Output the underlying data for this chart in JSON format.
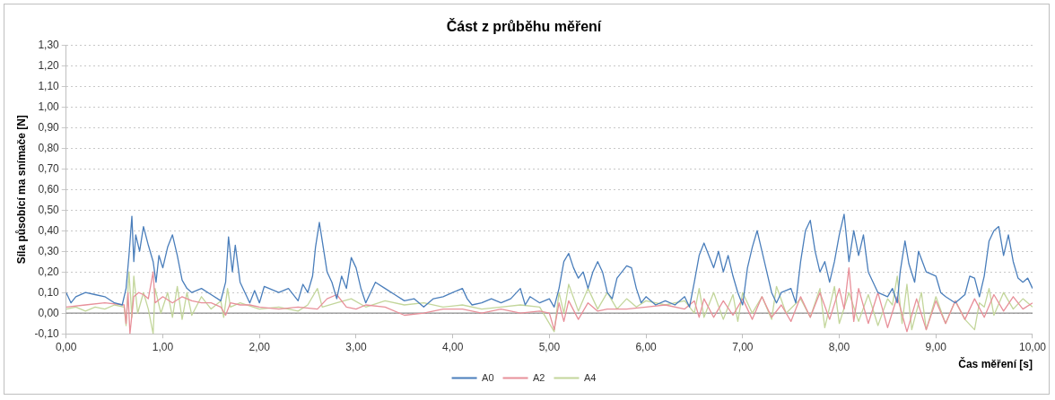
{
  "chart_data": {
    "type": "line",
    "title": "Část z průběhu měření",
    "xlabel": "Čas měření [s]",
    "ylabel": "Síla působící ma snímače [N]",
    "xlim": [
      0,
      10
    ],
    "xticks": [
      {
        "value": 0,
        "label": "0,00"
      },
      {
        "value": 1,
        "label": "1,00"
      },
      {
        "value": 2,
        "label": "2,00"
      },
      {
        "value": 3,
        "label": "3,00"
      },
      {
        "value": 4,
        "label": "4,00"
      },
      {
        "value": 5,
        "label": "5,00"
      },
      {
        "value": 6,
        "label": "6,00"
      },
      {
        "value": 7,
        "label": "7,00"
      },
      {
        "value": 8,
        "label": "8,00"
      },
      {
        "value": 9,
        "label": "9,00"
      },
      {
        "value": 10,
        "label": "10,00"
      }
    ],
    "ylim": [
      -0.1,
      1.3
    ],
    "yticks": [
      {
        "value": -0.1,
        "label": "-0,10"
      },
      {
        "value": 0,
        "label": "0,00"
      },
      {
        "value": 0.1,
        "label": "0,10"
      },
      {
        "value": 0.2,
        "label": "0,20"
      },
      {
        "value": 0.3,
        "label": "0,30"
      },
      {
        "value": 0.4,
        "label": "0,40"
      },
      {
        "value": 0.5,
        "label": "0,50"
      },
      {
        "value": 0.6,
        "label": "0,60"
      },
      {
        "value": 0.7,
        "label": "0,70"
      },
      {
        "value": 0.8,
        "label": "0,80"
      },
      {
        "value": 0.9,
        "label": "0,90"
      },
      {
        "value": 1.0,
        "label": "1,00"
      },
      {
        "value": 1.1,
        "label": "1,10"
      },
      {
        "value": 1.2,
        "label": "1,20"
      },
      {
        "value": 1.3,
        "label": "1,30"
      }
    ],
    "grid": "y",
    "legend": "bottom",
    "marker": "none",
    "line_style": "solid",
    "series": [
      {
        "name": "A0",
        "color": "#4a7ebb",
        "x": [
          0,
          0.05,
          0.1,
          0.2,
          0.3,
          0.4,
          0.5,
          0.58,
          0.62,
          0.65,
          0.68,
          0.7,
          0.72,
          0.76,
          0.8,
          0.85,
          0.9,
          0.93,
          0.96,
          1.0,
          1.05,
          1.1,
          1.15,
          1.2,
          1.25,
          1.3,
          1.4,
          1.5,
          1.6,
          1.65,
          1.68,
          1.72,
          1.75,
          1.8,
          1.85,
          1.9,
          1.95,
          2.0,
          2.05,
          2.1,
          2.2,
          2.3,
          2.4,
          2.45,
          2.5,
          2.55,
          2.58,
          2.62,
          2.66,
          2.7,
          2.75,
          2.8,
          2.85,
          2.9,
          2.95,
          3.0,
          3.05,
          3.1,
          3.2,
          3.3,
          3.4,
          3.5,
          3.6,
          3.7,
          3.8,
          3.9,
          4.0,
          4.1,
          4.15,
          4.2,
          4.3,
          4.4,
          4.5,
          4.6,
          4.7,
          4.75,
          4.8,
          4.9,
          5.0,
          5.05,
          5.1,
          5.15,
          5.2,
          5.25,
          5.3,
          5.35,
          5.4,
          5.45,
          5.5,
          5.55,
          5.6,
          5.65,
          5.7,
          5.8,
          5.85,
          5.9,
          5.95,
          6.0,
          6.1,
          6.2,
          6.3,
          6.4,
          6.45,
          6.5,
          6.55,
          6.6,
          6.7,
          6.75,
          6.8,
          6.85,
          6.9,
          6.95,
          7.0,
          7.05,
          7.1,
          7.15,
          7.2,
          7.3,
          7.35,
          7.4,
          7.5,
          7.55,
          7.6,
          7.65,
          7.7,
          7.75,
          7.8,
          7.85,
          7.9,
          7.95,
          8.0,
          8.05,
          8.1,
          8.15,
          8.2,
          8.25,
          8.3,
          8.35,
          8.4,
          8.5,
          8.55,
          8.6,
          8.63,
          8.68,
          8.72,
          8.78,
          8.82,
          8.9,
          9.0,
          9.05,
          9.1,
          9.2,
          9.3,
          9.35,
          9.4,
          9.45,
          9.5,
          9.55,
          9.6,
          9.65,
          9.7,
          9.75,
          9.8,
          9.85,
          9.9,
          9.95,
          10.0
        ],
        "values": [
          0.1,
          0.05,
          0.08,
          0.1,
          0.09,
          0.08,
          0.05,
          0.04,
          0.12,
          0.28,
          0.47,
          0.25,
          0.38,
          0.3,
          0.42,
          0.33,
          0.25,
          0.15,
          0.28,
          0.22,
          0.32,
          0.38,
          0.28,
          0.16,
          0.12,
          0.1,
          0.12,
          0.09,
          0.06,
          0.15,
          0.37,
          0.2,
          0.33,
          0.15,
          0.1,
          0.05,
          0.11,
          0.05,
          0.13,
          0.12,
          0.1,
          0.12,
          0.06,
          0.14,
          0.1,
          0.18,
          0.32,
          0.44,
          0.32,
          0.2,
          0.15,
          0.07,
          0.18,
          0.12,
          0.27,
          0.22,
          0.12,
          0.05,
          0.15,
          0.12,
          0.09,
          0.06,
          0.07,
          0.03,
          0.07,
          0.08,
          0.1,
          0.12,
          0.07,
          0.04,
          0.05,
          0.07,
          0.05,
          0.07,
          0.12,
          0.04,
          0.08,
          0.05,
          0.07,
          0.03,
          0.12,
          0.25,
          0.29,
          0.22,
          0.17,
          0.2,
          0.12,
          0.2,
          0.25,
          0.2,
          0.1,
          0.07,
          0.17,
          0.23,
          0.22,
          0.12,
          0.05,
          0.08,
          0.04,
          0.06,
          0.04,
          0.08,
          0.03,
          0.15,
          0.28,
          0.34,
          0.22,
          0.3,
          0.2,
          0.28,
          0.18,
          0.1,
          0.04,
          0.22,
          0.32,
          0.4,
          0.3,
          0.1,
          0.05,
          0.1,
          0.12,
          0.05,
          0.25,
          0.4,
          0.45,
          0.3,
          0.2,
          0.25,
          0.15,
          0.25,
          0.38,
          0.48,
          0.25,
          0.4,
          0.28,
          0.38,
          0.2,
          0.15,
          0.1,
          0.08,
          0.12,
          0.05,
          0.2,
          0.35,
          0.24,
          0.15,
          0.3,
          0.2,
          0.18,
          0.1,
          0.08,
          0.05,
          0.09,
          0.18,
          0.17,
          0.08,
          0.18,
          0.35,
          0.4,
          0.42,
          0.28,
          0.38,
          0.25,
          0.17,
          0.15,
          0.17,
          0.12
        ]
      },
      {
        "name": "A2",
        "color": "#e8909a",
        "x": [
          0,
          0.2,
          0.4,
          0.6,
          0.62,
          0.64,
          0.66,
          0.7,
          0.75,
          0.8,
          0.85,
          0.9,
          0.92,
          1.0,
          1.1,
          1.2,
          1.3,
          1.4,
          1.5,
          1.6,
          1.65,
          1.7,
          1.8,
          1.9,
          2.0,
          2.2,
          2.4,
          2.6,
          2.7,
          2.8,
          2.9,
          3.0,
          3.1,
          3.3,
          3.5,
          3.7,
          3.9,
          4.1,
          4.3,
          4.5,
          4.7,
          4.9,
          5.0,
          5.05,
          5.1,
          5.15,
          5.2,
          5.3,
          5.4,
          5.5,
          5.6,
          5.8,
          6.0,
          6.2,
          6.4,
          6.5,
          6.55,
          6.6,
          6.7,
          6.8,
          6.9,
          7.0,
          7.1,
          7.2,
          7.3,
          7.4,
          7.5,
          7.6,
          7.7,
          7.8,
          7.9,
          8.0,
          8.05,
          8.1,
          8.15,
          8.2,
          8.3,
          8.4,
          8.5,
          8.6,
          8.7,
          8.8,
          8.9,
          9.0,
          9.1,
          9.2,
          9.3,
          9.4,
          9.5,
          9.6,
          9.7,
          9.8,
          9.9,
          10.0
        ],
        "values": [
          0.03,
          0.04,
          0.05,
          0.04,
          -0.05,
          0.1,
          -0.1,
          0.08,
          0.1,
          0.09,
          0.07,
          0.2,
          0.05,
          0.08,
          0.05,
          0.08,
          0.06,
          0.05,
          0.05,
          0.03,
          -0.01,
          0.05,
          0.04,
          0.04,
          0.03,
          0.02,
          0.03,
          0.02,
          0.07,
          0.09,
          0.03,
          0.02,
          0.04,
          0.03,
          -0.01,
          0.0,
          0.02,
          0.02,
          0.0,
          0.02,
          0.0,
          0.01,
          0.0,
          -0.08,
          0.05,
          -0.04,
          0.06,
          -0.03,
          0.05,
          0.01,
          0.02,
          0.02,
          0.03,
          0.04,
          0.02,
          0.06,
          -0.02,
          0.07,
          -0.02,
          0.06,
          -0.01,
          0.07,
          -0.03,
          0.08,
          -0.02,
          0.04,
          -0.04,
          0.08,
          -0.02,
          0.1,
          -0.03,
          0.12,
          0.02,
          0.22,
          -0.04,
          0.12,
          -0.05,
          0.1,
          -0.07,
          0.08,
          -0.09,
          0.07,
          -0.08,
          0.06,
          -0.05,
          0.06,
          -0.03,
          0.07,
          -0.02,
          0.09,
          0.01,
          0.08,
          0.02,
          0.05
        ]
      },
      {
        "name": "A4",
        "color": "#c3d69b",
        "x": [
          0,
          0.1,
          0.2,
          0.3,
          0.4,
          0.5,
          0.6,
          0.62,
          0.65,
          0.68,
          0.7,
          0.74,
          0.8,
          0.85,
          0.9,
          0.92,
          0.98,
          1.05,
          1.1,
          1.15,
          1.2,
          1.25,
          1.3,
          1.4,
          1.5,
          1.6,
          1.63,
          1.67,
          1.7,
          1.8,
          2.0,
          2.2,
          2.4,
          2.5,
          2.6,
          2.65,
          2.8,
          2.95,
          3.1,
          3.3,
          3.5,
          3.7,
          3.9,
          4.1,
          4.3,
          4.5,
          4.7,
          4.9,
          5.05,
          5.1,
          5.15,
          5.2,
          5.3,
          5.4,
          5.5,
          5.6,
          5.7,
          5.8,
          5.9,
          6.0,
          6.2,
          6.4,
          6.5,
          6.55,
          6.6,
          6.7,
          6.8,
          6.9,
          6.95,
          7.0,
          7.1,
          7.2,
          7.3,
          7.35,
          7.45,
          7.6,
          7.7,
          7.8,
          7.85,
          7.95,
          8.0,
          8.1,
          8.2,
          8.3,
          8.4,
          8.5,
          8.55,
          8.6,
          8.65,
          8.7,
          8.75,
          8.85,
          8.9,
          9.0,
          9.1,
          9.2,
          9.3,
          9.4,
          9.45,
          9.5,
          9.55,
          9.6,
          9.7,
          9.8,
          9.9,
          10.0
        ],
        "values": [
          0.02,
          0.03,
          0.01,
          0.03,
          0.02,
          0.04,
          0.03,
          -0.06,
          0.2,
          -0.02,
          0.18,
          0.0,
          0.1,
          0.02,
          -0.1,
          0.12,
          0.0,
          0.1,
          -0.02,
          0.13,
          -0.03,
          0.1,
          -0.01,
          0.08,
          0.02,
          0.06,
          -0.02,
          0.12,
          0.03,
          0.05,
          0.02,
          0.03,
          0.01,
          0.04,
          0.12,
          0.03,
          0.05,
          0.07,
          0.03,
          0.06,
          0.04,
          0.05,
          0.03,
          0.04,
          0.02,
          0.03,
          0.04,
          0.03,
          -0.09,
          0.1,
          0.0,
          0.14,
          0.01,
          0.12,
          0.02,
          0.1,
          0.02,
          0.07,
          0.03,
          0.06,
          0.04,
          0.06,
          0.0,
          0.12,
          -0.02,
          0.1,
          -0.03,
          0.09,
          -0.04,
          0.1,
          0.0,
          0.08,
          -0.03,
          0.13,
          0.0,
          0.07,
          -0.02,
          0.12,
          -0.07,
          0.13,
          -0.05,
          0.1,
          -0.04,
          0.09,
          -0.06,
          0.07,
          0.04,
          0.18,
          -0.05,
          0.14,
          -0.08,
          0.1,
          -0.08,
          0.08,
          -0.05,
          0.06,
          -0.03,
          -0.08,
          0.05,
          0.03,
          0.12,
          -0.01,
          0.1,
          0.02,
          0.07,
          0.03
        ]
      }
    ]
  }
}
